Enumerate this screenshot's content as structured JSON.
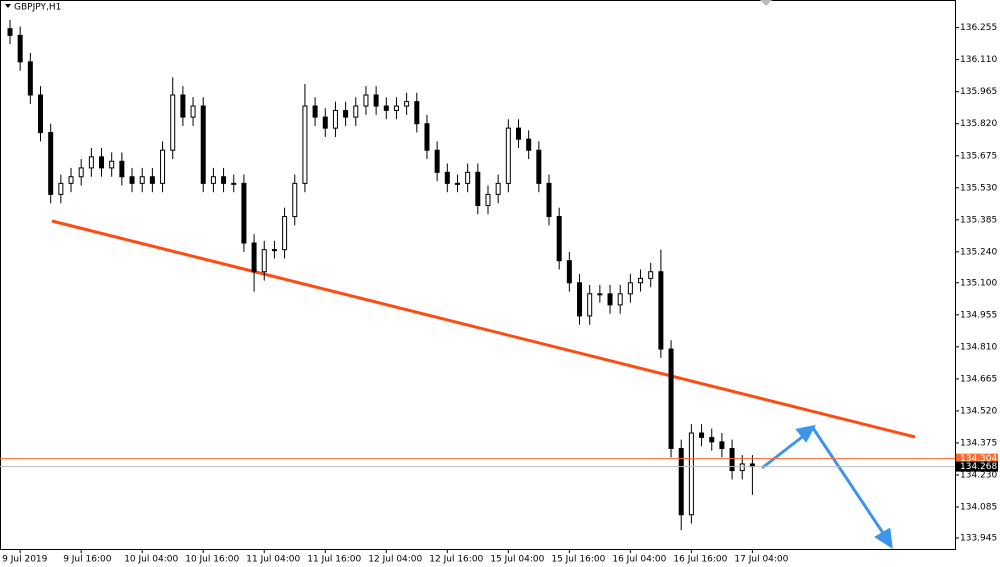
{
  "chart_data": {
    "type": "candlestick",
    "title": "GBPJPY,H1",
    "categories": [
      null,
      "9 Jul 2019",
      null,
      null,
      null,
      null,
      null,
      "9 Jul 16:00",
      null,
      null,
      null,
      null,
      null,
      "10 Jul 04:00",
      null,
      null,
      null,
      null,
      null,
      "10 Jul 16:00",
      null,
      null,
      null,
      null,
      null,
      "11 Jul 04:00",
      null,
      null,
      null,
      null,
      null,
      "11 Jul 16:00",
      null,
      null,
      null,
      null,
      null,
      "12 Jul 04:00",
      null,
      null,
      null,
      null,
      null,
      "12 Jul 16:00",
      null,
      null,
      null,
      null,
      null,
      "15 Jul 04:00",
      null,
      null,
      null,
      null,
      null,
      "15 Jul 16:00",
      null,
      null,
      null,
      null,
      null,
      "16 Jul 04:00",
      null,
      null,
      null,
      null,
      null,
      "16 Jul 16:00",
      null,
      null,
      null,
      null,
      null,
      "17 Jul 04:00"
    ],
    "open": [
      136.25,
      136.22,
      136.1,
      135.95,
      135.78,
      135.5,
      135.55,
      135.58,
      135.62,
      135.67,
      135.62,
      135.65,
      135.58,
      135.55,
      135.58,
      135.55,
      135.7,
      135.95,
      135.85,
      135.9,
      135.55,
      135.58,
      135.55,
      135.55,
      135.28,
      135.15,
      135.25,
      135.25,
      135.4,
      135.55,
      135.9,
      135.85,
      135.8,
      135.88,
      135.85,
      135.9,
      135.95,
      135.9,
      135.88,
      135.9,
      135.92,
      135.82,
      135.7,
      135.6,
      135.55,
      135.55,
      135.6,
      135.45,
      135.5,
      135.55,
      135.8,
      135.75,
      135.7,
      135.55,
      135.4,
      135.2,
      135.1,
      134.95,
      135.05,
      135.05,
      135.0,
      135.05,
      135.1,
      135.12,
      135.15,
      134.8,
      134.35,
      134.05,
      134.42,
      134.4,
      134.38,
      134.35,
      134.25,
      134.28
    ],
    "high": [
      136.29,
      136.26,
      136.14,
      135.99,
      135.82,
      135.59,
      135.62,
      135.66,
      135.71,
      135.71,
      135.69,
      135.69,
      135.62,
      135.62,
      135.62,
      135.74,
      136.03,
      135.99,
      135.94,
      135.94,
      135.62,
      135.62,
      135.59,
      135.59,
      135.32,
      135.29,
      135.29,
      135.44,
      135.59,
      136.0,
      135.94,
      135.89,
      135.92,
      135.92,
      135.94,
      135.99,
      135.99,
      135.94,
      135.94,
      135.96,
      135.96,
      135.86,
      135.74,
      135.64,
      135.59,
      135.64,
      135.64,
      135.54,
      135.59,
      135.84,
      135.84,
      135.79,
      135.74,
      135.59,
      135.44,
      135.24,
      135.14,
      135.09,
      135.09,
      135.09,
      135.09,
      135.14,
      135.16,
      135.19,
      135.25,
      134.84,
      134.39,
      134.46,
      134.46,
      134.44,
      134.42,
      134.39,
      134.32,
      134.32
    ],
    "low": [
      136.18,
      136.06,
      135.91,
      135.74,
      135.46,
      135.46,
      135.51,
      135.54,
      135.58,
      135.58,
      135.58,
      135.54,
      135.51,
      135.51,
      135.51,
      135.51,
      135.66,
      135.81,
      135.81,
      135.51,
      135.51,
      135.51,
      135.51,
      135.24,
      135.06,
      135.11,
      135.21,
      135.21,
      135.36,
      135.51,
      135.81,
      135.76,
      135.76,
      135.81,
      135.81,
      135.86,
      135.86,
      135.84,
      135.84,
      135.86,
      135.78,
      135.66,
      135.56,
      135.51,
      135.51,
      135.51,
      135.41,
      135.41,
      135.46,
      135.51,
      135.71,
      135.66,
      135.51,
      135.36,
      135.16,
      135.06,
      134.91,
      134.91,
      135.01,
      134.96,
      134.96,
      135.01,
      135.06,
      135.08,
      134.76,
      134.31,
      133.98,
      134.01,
      134.36,
      134.34,
      134.31,
      134.21,
      134.21,
      134.14
    ],
    "close": [
      136.22,
      136.1,
      135.95,
      135.78,
      135.5,
      135.55,
      135.58,
      135.62,
      135.67,
      135.62,
      135.65,
      135.58,
      135.55,
      135.58,
      135.55,
      135.7,
      135.95,
      135.85,
      135.9,
      135.55,
      135.58,
      135.55,
      135.55,
      135.28,
      135.15,
      135.25,
      135.25,
      135.4,
      135.55,
      135.9,
      135.85,
      135.8,
      135.88,
      135.85,
      135.9,
      135.95,
      135.9,
      135.88,
      135.9,
      135.92,
      135.82,
      135.7,
      135.6,
      135.55,
      135.55,
      135.6,
      135.45,
      135.5,
      135.55,
      135.8,
      135.75,
      135.7,
      135.55,
      135.4,
      135.2,
      135.1,
      134.95,
      135.05,
      135.05,
      135.0,
      135.05,
      135.1,
      135.12,
      135.15,
      134.8,
      134.35,
      134.05,
      134.42,
      134.4,
      134.38,
      134.35,
      134.25,
      134.28,
      134.268
    ],
    "ylim": [
      133.895,
      136.38
    ],
    "yticks": [
      136.255,
      {
        "value": 136.11,
        "label": "136.110"
      },
      135.965,
      {
        "value": 135.82,
        "label": "135.820"
      },
      135.675,
      {
        "value": 135.53,
        "label": "135.530"
      },
      135.385,
      {
        "value": 135.24,
        "label": "135.240"
      },
      {
        "value": 135.1,
        "label": "135.100"
      },
      134.955,
      {
        "value": 134.81,
        "label": "134.810"
      },
      134.665,
      {
        "value": 134.52,
        "label": "134.520"
      },
      134.375,
      {
        "value": 134.23,
        "label": "134.230"
      },
      134.085,
      133.945
    ],
    "price_lines": [
      {
        "value": 134.304,
        "color": "#ff6a2c"
      },
      {
        "value": 134.268,
        "color": "#000000"
      }
    ]
  }
}
